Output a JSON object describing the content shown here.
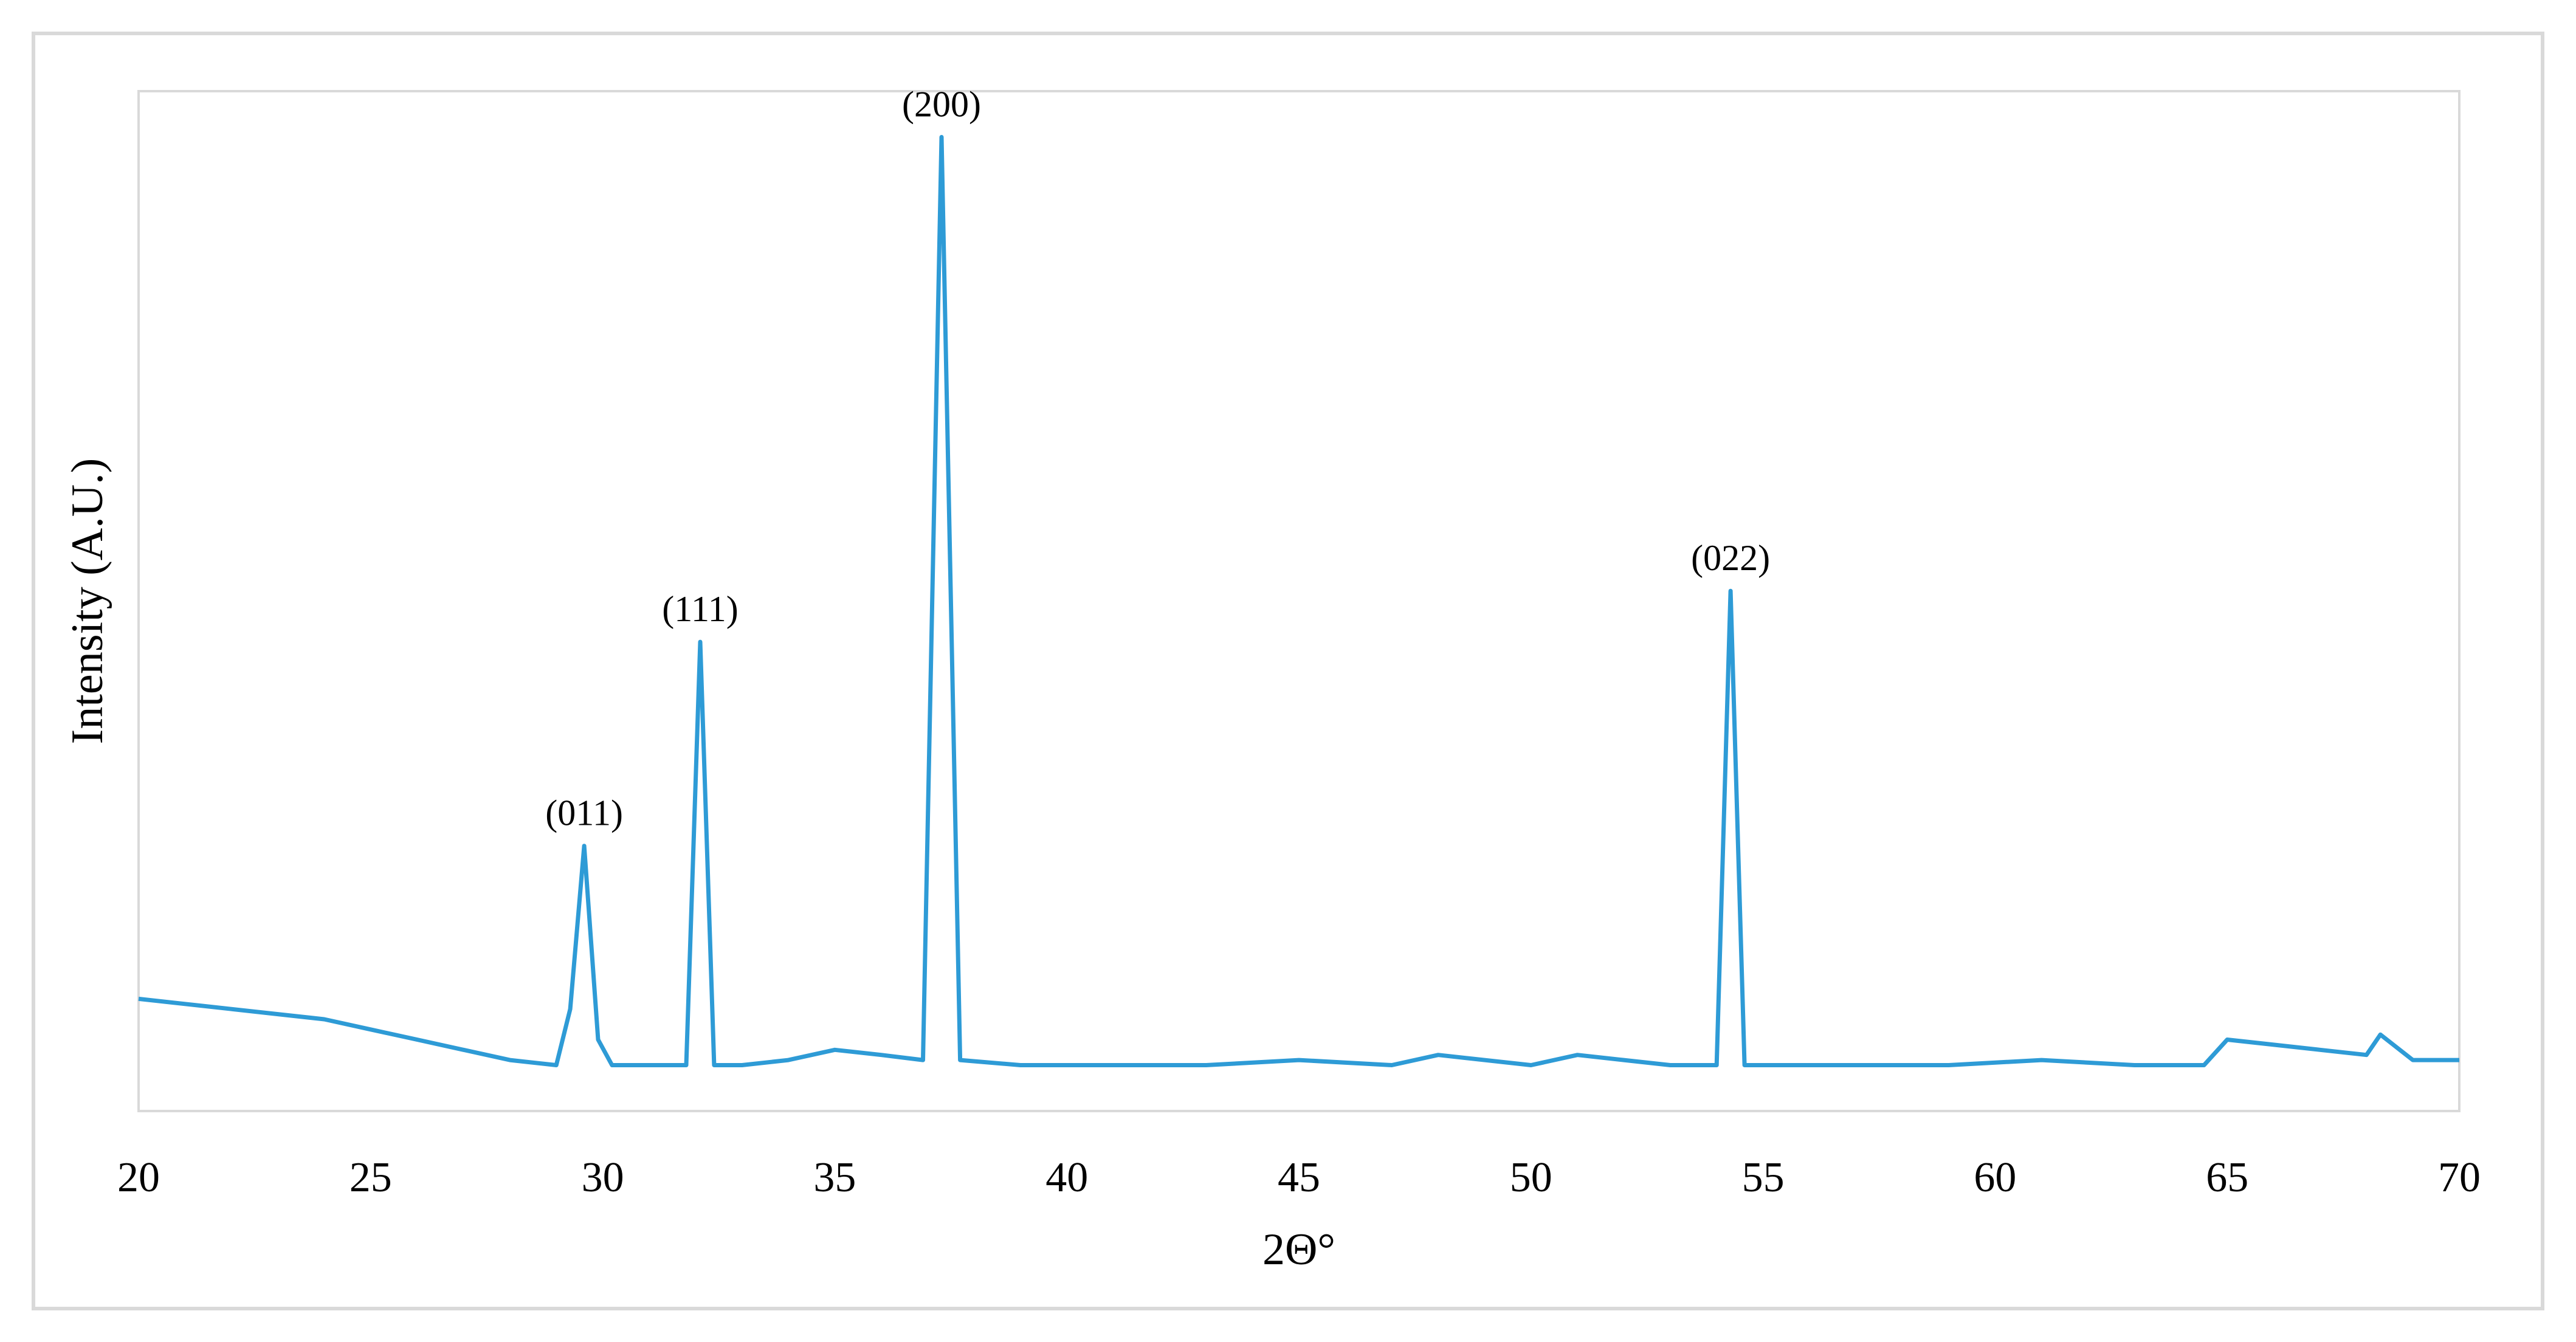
{
  "chart_data": {
    "type": "line",
    "xlabel": "2Θ°",
    "ylabel": "Intensity (A.U.)",
    "xlim": [
      20,
      70
    ],
    "ylim": [
      0,
      1
    ],
    "xticks": [
      "20",
      "25",
      "30",
      "35",
      "40",
      "45",
      "50",
      "55",
      "60",
      "65",
      "70"
    ],
    "grid": false,
    "line_color": "#2e9bd6",
    "series": [
      {
        "x": [
          20,
          21,
          22,
          23,
          24,
          25,
          26,
          27,
          28,
          29,
          29.3,
          29.6,
          29.9,
          30.2,
          31,
          31.8,
          32.1,
          32.4,
          33,
          34,
          35,
          36,
          36.9,
          37.3,
          37.7,
          39,
          41,
          43,
          45,
          47,
          48,
          50,
          51,
          52,
          53,
          54,
          54.3,
          54.6,
          55,
          57,
          59,
          61,
          63,
          64.5,
          65,
          66,
          67,
          68,
          68.3,
          69,
          70
        ],
        "y": [
          0.11,
          0.105,
          0.1,
          0.095,
          0.09,
          0.08,
          0.07,
          0.06,
          0.05,
          0.045,
          0.1,
          0.26,
          0.07,
          0.045,
          0.045,
          0.045,
          0.46,
          0.045,
          0.045,
          0.05,
          0.06,
          0.055,
          0.05,
          0.955,
          0.05,
          0.045,
          0.045,
          0.045,
          0.05,
          0.045,
          0.055,
          0.045,
          0.055,
          0.05,
          0.045,
          0.045,
          0.51,
          0.045,
          0.045,
          0.045,
          0.045,
          0.05,
          0.045,
          0.045,
          0.07,
          0.065,
          0.06,
          0.055,
          0.075,
          0.05,
          0.05
        ]
      }
    ],
    "annotations": [
      {
        "text": "(011)",
        "x": 29.6,
        "y": 0.26
      },
      {
        "text": "(111)",
        "x": 32.1,
        "y": 0.46
      },
      {
        "text": "(200)",
        "x": 37.3,
        "y": 0.955
      },
      {
        "text": "(022)",
        "x": 54.3,
        "y": 0.51
      }
    ]
  }
}
